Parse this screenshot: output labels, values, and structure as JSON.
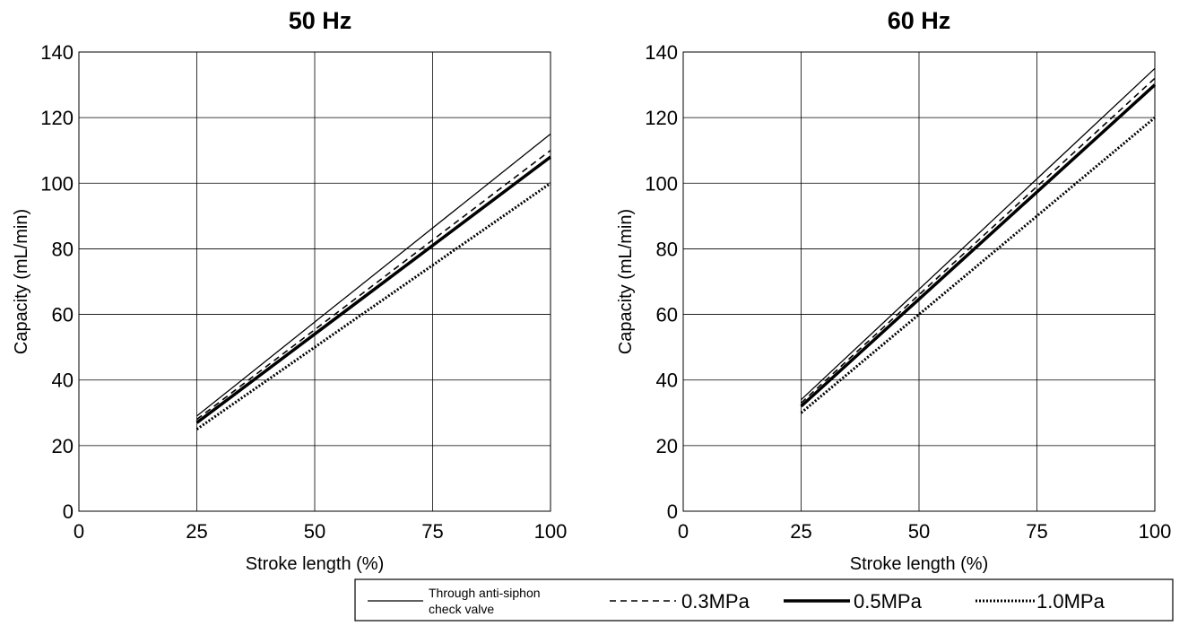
{
  "chart_data": [
    {
      "type": "line",
      "title": "50 Hz",
      "xlabel": "Stroke length (%)",
      "ylabel": "Capacity (mL/min)",
      "xlim": [
        0,
        100
      ],
      "ylim": [
        0,
        140
      ],
      "xticks": [
        "0",
        "25",
        "50",
        "75",
        "100"
      ],
      "yticks": [
        "0",
        "20",
        "40",
        "60",
        "80",
        "100",
        "120",
        "140"
      ],
      "grid": true,
      "series": [
        {
          "name": "Through anti-siphon check valve",
          "style": "thin-solid",
          "x": [
            25,
            100
          ],
          "y": [
            29,
            115
          ]
        },
        {
          "name": "0.3MPa",
          "style": "dashed",
          "x": [
            25,
            100
          ],
          "y": [
            28,
            110
          ]
        },
        {
          "name": "0.5MPa",
          "style": "thick-solid",
          "x": [
            25,
            100
          ],
          "y": [
            27,
            108
          ]
        },
        {
          "name": "1.0MPa",
          "style": "dotted",
          "x": [
            25,
            100
          ],
          "y": [
            25,
            100
          ]
        }
      ]
    },
    {
      "type": "line",
      "title": "60 Hz",
      "xlabel": "Stroke length (%)",
      "ylabel": "Capacity (mL/min)",
      "xlim": [
        0,
        100
      ],
      "ylim": [
        0,
        140
      ],
      "xticks": [
        "0",
        "25",
        "50",
        "75",
        "100"
      ],
      "yticks": [
        "0",
        "20",
        "40",
        "60",
        "80",
        "100",
        "120",
        "140"
      ],
      "grid": true,
      "series": [
        {
          "name": "Through anti-siphon check valve",
          "style": "thin-solid",
          "x": [
            25,
            100
          ],
          "y": [
            34,
            135
          ]
        },
        {
          "name": "0.3MPa",
          "style": "dashed",
          "x": [
            25,
            100
          ],
          "y": [
            33,
            132
          ]
        },
        {
          "name": "0.5MPa",
          "style": "thick-solid",
          "x": [
            25,
            100
          ],
          "y": [
            32,
            130
          ]
        },
        {
          "name": "1.0MPa",
          "style": "dotted",
          "x": [
            25,
            100
          ],
          "y": [
            30,
            120
          ]
        }
      ]
    }
  ],
  "legend": {
    "placement": "bottom",
    "items": [
      {
        "label_line1": "Through anti-siphon",
        "label_line2": "check valve",
        "style": "thin-solid"
      },
      {
        "label": "0.3MPa",
        "style": "dashed"
      },
      {
        "label": "0.5MPa",
        "style": "thick-solid"
      },
      {
        "label": "1.0MPa",
        "style": "dotted"
      }
    ]
  }
}
